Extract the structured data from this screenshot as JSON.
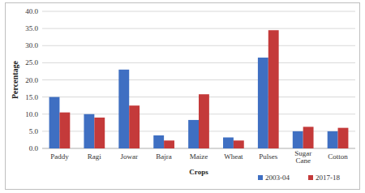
{
  "chart_data": {
    "type": "bar",
    "x_label": "Crops",
    "y_label": "Percentage",
    "categories": [
      "Paddy",
      "Ragi",
      "Jowar",
      "Bajra",
      "Maize",
      "Wheat",
      "Pulses",
      "Sugar Cane",
      "Cotton"
    ],
    "series": [
      {
        "name": "2003-04",
        "color": "#3f6fc2",
        "values": [
          15.0,
          10.0,
          23.0,
          3.8,
          8.3,
          3.2,
          26.5,
          5.0,
          5.0
        ]
      },
      {
        "name": "2017-18",
        "color": "#c43a3a",
        "values": [
          10.5,
          9.0,
          12.5,
          2.3,
          15.8,
          2.3,
          34.5,
          6.3,
          6.0
        ]
      }
    ],
    "ylim": [
      0,
      40
    ],
    "yticks": [
      {
        "value": 0,
        "label": "0.0"
      },
      {
        "value": 5,
        "label": "5.0"
      },
      {
        "value": 10,
        "label": "10.0"
      },
      {
        "value": 15,
        "label": "15.0"
      },
      {
        "value": 20,
        "label": "20.0"
      },
      {
        "value": 25,
        "label": "25.0"
      },
      {
        "value": 30,
        "label": "30.0"
      },
      {
        "value": 35,
        "label": "35.0"
      },
      {
        "value": 40,
        "label": "40.0"
      }
    ],
    "grid": true,
    "legend": "bottom-right"
  }
}
